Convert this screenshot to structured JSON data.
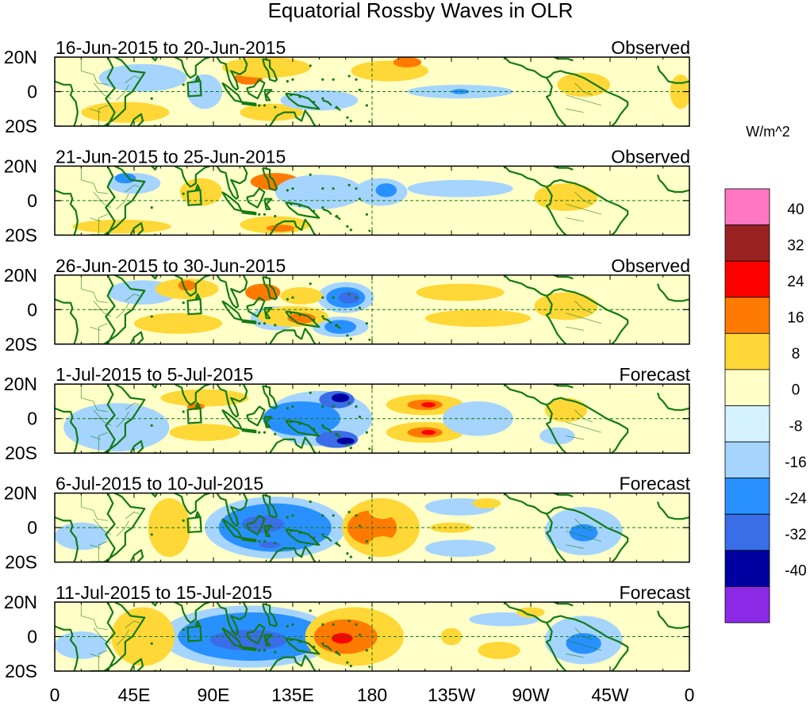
{
  "chart_data": {
    "type": "heatmap",
    "title": "Equatorial Rossby Waves in OLR",
    "units": "W/m^2",
    "x_ticks": [
      "0",
      "45E",
      "90E",
      "135E",
      "180",
      "135W",
      "90W",
      "45W",
      "0"
    ],
    "y_ticks": [
      "20N",
      "0",
      "20S"
    ],
    "xlim": [
      0,
      360
    ],
    "ylim": [
      -20,
      20
    ],
    "colorbar": {
      "levels": [
        40,
        32,
        24,
        16,
        8,
        0,
        -8,
        -16,
        -24,
        -32,
        -40
      ],
      "colors": [
        "#ff77c3",
        "#9b2222",
        "#ff0000",
        "#ff7a00",
        "#ffd736",
        "#ffffc8",
        "#d4f3ff",
        "#a5d4ff",
        "#2891ff",
        "#3a6ee8",
        "#0000a0",
        "#8c2ae8"
      ]
    },
    "panels": [
      {
        "period": "16-Jun-2015 to 20-Jun-2015",
        "status": "Observed",
        "features": [
          {
            "lon": 123,
            "lat": 13,
            "rx": 12,
            "ry": 5,
            "value": 16
          },
          {
            "lon": 110,
            "lat": 8,
            "rx": 8,
            "ry": 4,
            "value": 16
          },
          {
            "lon": 123,
            "lat": -12,
            "rx": 18,
            "ry": 5,
            "value": 8
          },
          {
            "lon": 120,
            "lat": 14,
            "rx": 25,
            "ry": 6,
            "value": 8
          },
          {
            "lon": 190,
            "lat": 12,
            "rx": 22,
            "ry": 6,
            "value": 8
          },
          {
            "lon": 200,
            "lat": 17,
            "rx": 8,
            "ry": 3,
            "value": 16
          },
          {
            "lon": 300,
            "lat": 4,
            "rx": 15,
            "ry": 7,
            "value": 8
          },
          {
            "lon": 355,
            "lat": 0,
            "rx": 6,
            "ry": 10,
            "value": 8
          },
          {
            "lon": 40,
            "lat": -12,
            "rx": 25,
            "ry": 6,
            "value": 8
          },
          {
            "lon": 50,
            "lat": 8,
            "rx": 25,
            "ry": 8,
            "value": -8
          },
          {
            "lon": 150,
            "lat": -5,
            "rx": 22,
            "ry": 6,
            "value": -8
          },
          {
            "lon": 230,
            "lat": 0,
            "rx": 30,
            "ry": 4,
            "value": -8
          },
          {
            "lon": 230,
            "lat": 0,
            "rx": 5,
            "ry": 1.5,
            "value": -16
          },
          {
            "lon": 85,
            "lat": 0,
            "rx": 10,
            "ry": 10,
            "value": -8
          }
        ]
      },
      {
        "period": "21-Jun-2015 to 25-Jun-2015",
        "status": "Observed",
        "features": [
          {
            "lon": 125,
            "lat": 11,
            "rx": 14,
            "ry": 5,
            "value": 16
          },
          {
            "lon": 125,
            "lat": -14,
            "rx": 20,
            "ry": 5,
            "value": 8
          },
          {
            "lon": 128,
            "lat": -16,
            "rx": 8,
            "ry": 2,
            "value": 16
          },
          {
            "lon": 290,
            "lat": 2,
            "rx": 18,
            "ry": 8,
            "value": 8
          },
          {
            "lon": 83,
            "lat": 5,
            "rx": 12,
            "ry": 8,
            "value": 8
          },
          {
            "lon": 38,
            "lat": -15,
            "rx": 28,
            "ry": 4,
            "value": 8
          },
          {
            "lon": 45,
            "lat": 10,
            "rx": 15,
            "ry": 6,
            "value": -8
          },
          {
            "lon": 40,
            "lat": 13,
            "rx": 6,
            "ry": 3,
            "value": -16
          },
          {
            "lon": 150,
            "lat": 5,
            "rx": 25,
            "ry": 10,
            "value": -8
          },
          {
            "lon": 185,
            "lat": 5,
            "rx": 15,
            "ry": 8,
            "value": -8
          },
          {
            "lon": 188,
            "lat": 6,
            "rx": 6,
            "ry": 4,
            "value": -16
          },
          {
            "lon": 230,
            "lat": 7,
            "rx": 30,
            "ry": 5,
            "value": -8
          }
        ]
      },
      {
        "period": "26-Jun-2015 to 30-Jun-2015",
        "status": "Observed",
        "features": [
          {
            "lon": 165,
            "lat": 7,
            "rx": 16,
            "ry": 9,
            "value": -8
          },
          {
            "lon": 165,
            "lat": 7,
            "rx": 11,
            "ry": 6,
            "value": -16
          },
          {
            "lon": 167,
            "lat": 7,
            "rx": 6,
            "ry": 3.5,
            "value": -24
          },
          {
            "lon": 162,
            "lat": -10,
            "rx": 16,
            "ry": 6,
            "value": -8
          },
          {
            "lon": 162,
            "lat": -10,
            "rx": 9,
            "ry": 4,
            "value": -16
          },
          {
            "lon": 125,
            "lat": -5,
            "rx": 14,
            "ry": 7,
            "value": -8
          },
          {
            "lon": 50,
            "lat": 10,
            "rx": 20,
            "ry": 7,
            "value": -8
          },
          {
            "lon": 75,
            "lat": 12,
            "rx": 18,
            "ry": 6,
            "value": 8
          },
          {
            "lon": 75,
            "lat": 14,
            "rx": 5,
            "ry": 3,
            "value": 16
          },
          {
            "lon": 118,
            "lat": 10,
            "rx": 10,
            "ry": 5,
            "value": 16
          },
          {
            "lon": 135,
            "lat": -4,
            "rx": 20,
            "ry": 6,
            "value": 8
          },
          {
            "lon": 140,
            "lat": -5,
            "rx": 8,
            "ry": 3,
            "value": 16
          },
          {
            "lon": 140,
            "lat": 8,
            "rx": 12,
            "ry": 5,
            "value": 8
          },
          {
            "lon": 290,
            "lat": 2,
            "rx": 18,
            "ry": 8,
            "value": 8
          },
          {
            "lon": 230,
            "lat": 10,
            "rx": 25,
            "ry": 5,
            "value": 8
          },
          {
            "lon": 240,
            "lat": -5,
            "rx": 30,
            "ry": 5,
            "value": 8
          },
          {
            "lon": 70,
            "lat": -8,
            "rx": 25,
            "ry": 6,
            "value": 8
          }
        ]
      },
      {
        "period": "1-Jul-2015 to 5-Jul-2015",
        "status": "Forecast",
        "features": [
          {
            "lon": 150,
            "lat": 0,
            "rx": 30,
            "ry": 16,
            "value": -8
          },
          {
            "lon": 140,
            "lat": 0,
            "rx": 22,
            "ry": 10,
            "value": -16
          },
          {
            "lon": 160,
            "lat": 11,
            "rx": 10,
            "ry": 5,
            "value": -24
          },
          {
            "lon": 162,
            "lat": 12,
            "rx": 5,
            "ry": 2.5,
            "value": -32
          },
          {
            "lon": 160,
            "lat": -12,
            "rx": 12,
            "ry": 5,
            "value": -24
          },
          {
            "lon": 165,
            "lat": -13,
            "rx": 5,
            "ry": 2,
            "value": -32
          },
          {
            "lon": 35,
            "lat": -5,
            "rx": 30,
            "ry": 14,
            "value": -8
          },
          {
            "lon": 210,
            "lat": 8,
            "rx": 22,
            "ry": 6,
            "value": 8
          },
          {
            "lon": 210,
            "lat": 8,
            "rx": 10,
            "ry": 3,
            "value": 16
          },
          {
            "lon": 212,
            "lat": 8,
            "rx": 4,
            "ry": 1.5,
            "value": 24
          },
          {
            "lon": 210,
            "lat": -8,
            "rx": 22,
            "ry": 6,
            "value": 8
          },
          {
            "lon": 210,
            "lat": -8,
            "rx": 10,
            "ry": 3,
            "value": 16
          },
          {
            "lon": 212,
            "lat": -8,
            "rx": 4,
            "ry": 1.5,
            "value": 24
          },
          {
            "lon": 85,
            "lat": 12,
            "rx": 25,
            "ry": 5,
            "value": 8
          },
          {
            "lon": 80,
            "lat": 7,
            "rx": 5,
            "ry": 2,
            "value": 16
          },
          {
            "lon": 85,
            "lat": -8,
            "rx": 20,
            "ry": 5,
            "value": 8
          },
          {
            "lon": 290,
            "lat": 5,
            "rx": 12,
            "ry": 7,
            "value": 8
          },
          {
            "lon": 240,
            "lat": 0,
            "rx": 20,
            "ry": 10,
            "value": -8
          },
          {
            "lon": 285,
            "lat": -10,
            "rx": 10,
            "ry": 5,
            "value": -8
          }
        ]
      },
      {
        "period": "6-Jul-2015 to 10-Jul-2015",
        "status": "Forecast",
        "features": [
          {
            "lon": 125,
            "lat": 0,
            "rx": 40,
            "ry": 18,
            "value": -8
          },
          {
            "lon": 125,
            "lat": 0,
            "rx": 32,
            "ry": 14,
            "value": -16
          },
          {
            "lon": 118,
            "lat": 2,
            "rx": 12,
            "ry": 5,
            "value": -24
          },
          {
            "lon": 122,
            "lat": -10,
            "rx": 6,
            "ry": 2,
            "value": -24
          },
          {
            "lon": 185,
            "lat": 0,
            "rx": 22,
            "ry": 17,
            "value": 8
          },
          {
            "lon": 180,
            "lat": 0,
            "rx": 14,
            "ry": 10,
            "value": 16
          },
          {
            "lon": 186,
            "lat": 10,
            "rx": 8,
            "ry": 5,
            "value": 8
          },
          {
            "lon": 186,
            "lat": -10,
            "rx": 8,
            "ry": 5,
            "value": 8
          },
          {
            "lon": 65,
            "lat": 0,
            "rx": 12,
            "ry": 17,
            "value": 8
          },
          {
            "lon": 300,
            "lat": -2,
            "rx": 22,
            "ry": 14,
            "value": -8
          },
          {
            "lon": 300,
            "lat": -3,
            "rx": 8,
            "ry": 5,
            "value": -16
          },
          {
            "lon": 230,
            "lat": 12,
            "rx": 20,
            "ry": 5,
            "value": -8
          },
          {
            "lon": 230,
            "lat": -12,
            "rx": 20,
            "ry": 5,
            "value": -8
          },
          {
            "lon": 225,
            "lat": 0,
            "rx": 12,
            "ry": 3,
            "value": 8
          },
          {
            "lon": 15,
            "lat": -5,
            "rx": 15,
            "ry": 8,
            "value": -8
          },
          {
            "lon": 245,
            "lat": 14,
            "rx": 8,
            "ry": 3,
            "value": 8
          }
        ]
      },
      {
        "period": "11-Jul-2015 to 15-Jul-2015",
        "status": "Forecast",
        "features": [
          {
            "lon": 110,
            "lat": 0,
            "rx": 50,
            "ry": 18,
            "value": -8
          },
          {
            "lon": 112,
            "lat": 0,
            "rx": 42,
            "ry": 14,
            "value": -16
          },
          {
            "lon": 110,
            "lat": -2,
            "rx": 22,
            "ry": 6,
            "value": -24
          },
          {
            "lon": 170,
            "lat": 0,
            "rx": 28,
            "ry": 17,
            "value": 8
          },
          {
            "lon": 165,
            "lat": 0,
            "rx": 18,
            "ry": 10,
            "value": 16
          },
          {
            "lon": 163,
            "lat": -1,
            "rx": 6,
            "ry": 3,
            "value": 24
          },
          {
            "lon": 50,
            "lat": 0,
            "rx": 18,
            "ry": 17,
            "value": 8
          },
          {
            "lon": 225,
            "lat": 0,
            "rx": 6,
            "ry": 5,
            "value": 8
          },
          {
            "lon": 300,
            "lat": -2,
            "rx": 22,
            "ry": 14,
            "value": -8
          },
          {
            "lon": 300,
            "lat": -4,
            "rx": 10,
            "ry": 6,
            "value": -16
          },
          {
            "lon": 252,
            "lat": -8,
            "rx": 12,
            "ry": 5,
            "value": 8
          },
          {
            "lon": 255,
            "lat": 10,
            "rx": 20,
            "ry": 4,
            "value": -8
          },
          {
            "lon": 15,
            "lat": -5,
            "rx": 15,
            "ry": 8,
            "value": -8
          },
          {
            "lon": 270,
            "lat": 14,
            "rx": 8,
            "ry": 3,
            "value": 8
          }
        ]
      }
    ]
  }
}
